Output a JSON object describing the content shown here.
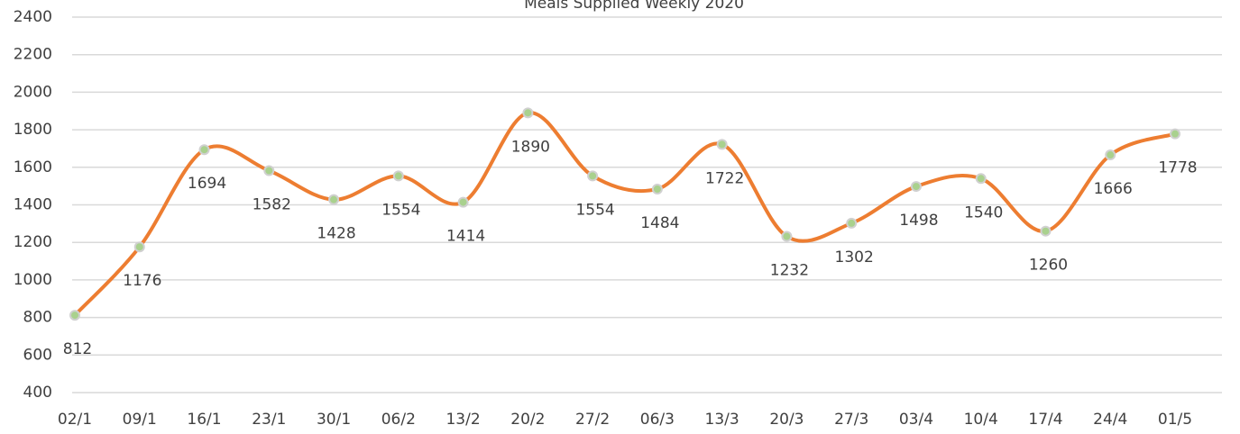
{
  "chart_data": {
    "type": "line",
    "title": "Meals Supplied Weekly 2020",
    "categories": [
      "02/1",
      "09/1",
      "16/1",
      "23/1",
      "30/1",
      "06/2",
      "13/2",
      "20/2",
      "27/2",
      "06/3",
      "13/3",
      "20/3",
      "27/3",
      "03/4",
      "10/4",
      "17/4",
      "24/4",
      "01/5"
    ],
    "values": [
      812,
      1176,
      1694,
      1582,
      1428,
      1554,
      1414,
      1890,
      1554,
      1484,
      1722,
      1232,
      1302,
      1498,
      1540,
      1260,
      1666,
      1778
    ],
    "color": "#ed7d31",
    "marker_color": "#a9d18e",
    "ylim": [
      400,
      2400
    ],
    "yticks": [
      400,
      600,
      800,
      1000,
      1200,
      1400,
      1600,
      1800,
      2000,
      2200,
      2400
    ],
    "grid": true
  }
}
